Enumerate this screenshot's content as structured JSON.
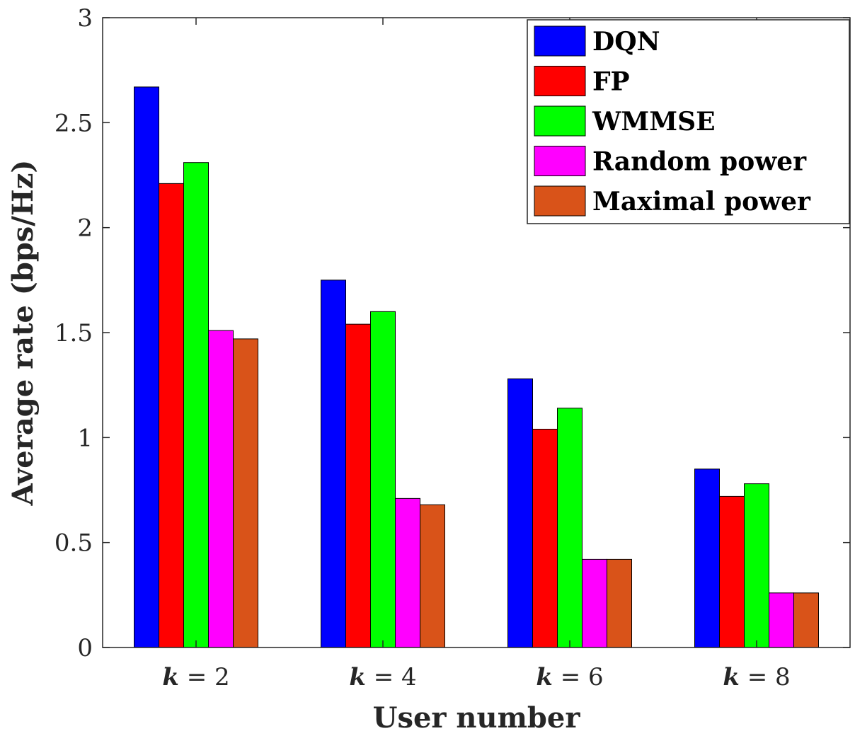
{
  "chart_data": {
    "type": "bar",
    "title": "",
    "xlabel": "User number",
    "ylabel": "Average rate (bps/Hz)",
    "ylim": [
      0,
      3
    ],
    "yticks": [
      "0",
      "0.5",
      "1",
      "1.5",
      "2",
      "2.5",
      "3"
    ],
    "categories": [
      {
        "k": "k",
        "rest": " = 2"
      },
      {
        "k": "k",
        "rest": " = 4"
      },
      {
        "k": "k",
        "rest": " = 6"
      },
      {
        "k": "k",
        "rest": " = 8"
      }
    ],
    "grid": false,
    "legend_position": "top-right",
    "series": [
      {
        "name": "DQN",
        "color": "#0000FF",
        "values": [
          2.67,
          1.75,
          1.28,
          0.85
        ]
      },
      {
        "name": "FP",
        "color": "#FF0000",
        "values": [
          2.21,
          1.54,
          1.04,
          0.72
        ]
      },
      {
        "name": "WMMSE",
        "color": "#00FF00",
        "values": [
          2.31,
          1.6,
          1.14,
          0.78
        ]
      },
      {
        "name": "Random power",
        "color": "#FF00FF",
        "values": [
          1.51,
          0.71,
          0.42,
          0.26
        ]
      },
      {
        "name": "Maximal power",
        "color": "#D95319",
        "values": [
          1.47,
          0.68,
          0.42,
          0.26
        ]
      }
    ]
  }
}
